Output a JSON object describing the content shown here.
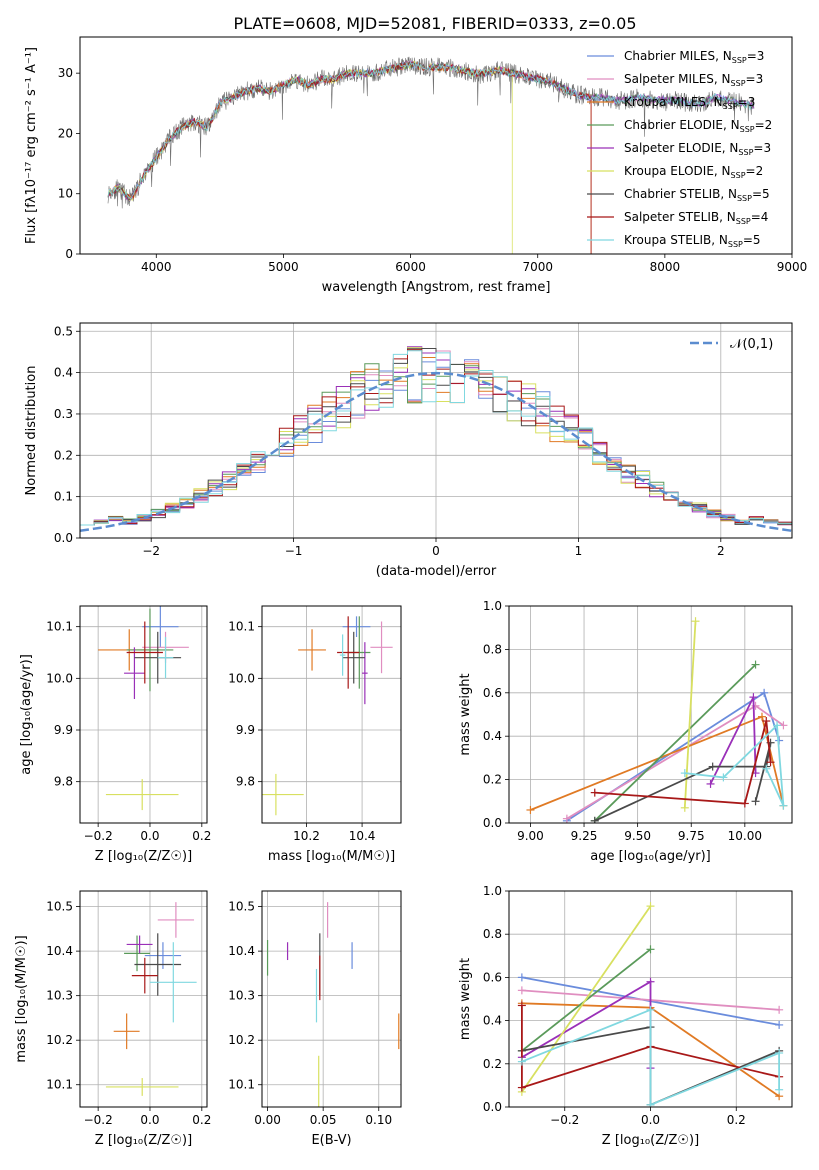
{
  "title": "PLATE=0608, MJD=52081, FIBERID=0333, z=0.05",
  "series_colors": [
    "#6a8cdc",
    "#e08ec0",
    "#e07a24",
    "#5a9a5a",
    "#9a30b8",
    "#d8e060",
    "#4a4a4a",
    "#a81818",
    "#80d8e0"
  ],
  "legend_labels": [
    [
      "Chabrier MILES, N",
      "SSP",
      "=3"
    ],
    [
      "Salpeter MILES, N",
      "SSP",
      "=3"
    ],
    [
      "Kroupa MILES, N",
      "SSP",
      "=3"
    ],
    [
      "Chabrier ELODIE, N",
      "SSP",
      "=2"
    ],
    [
      "Salpeter ELODIE, N",
      "SSP",
      "=3"
    ],
    [
      "Kroupa ELODIE, N",
      "SSP",
      "=2"
    ],
    [
      "Chabrier STELIB, N",
      "SSP",
      "=5"
    ],
    [
      "Salpeter STELIB, N",
      "SSP",
      "=4"
    ],
    [
      "Kroupa STELIB, N",
      "SSP",
      "=5"
    ]
  ],
  "chart_data": [
    {
      "id": "spectrum",
      "type": "line",
      "xlabel": "wavelength [Angstrom, rest frame]",
      "ylabel": "Flux [fλ10⁻¹⁷ erg cm⁻² s⁻¹ A⁻¹]",
      "xlim": [
        3400,
        9000
      ],
      "ylim": [
        0,
        36
      ],
      "xticks": [
        4000,
        5000,
        6000,
        7000,
        8000,
        9000
      ],
      "yticks": [
        0,
        10,
        20,
        30
      ],
      "grid": false,
      "legend": "top-right",
      "observed": {
        "name": "data",
        "x": [
          3620,
          3700,
          3800,
          3900,
          4000,
          4100,
          4200,
          4300,
          4400,
          4500,
          4600,
          4700,
          4800,
          4900,
          5000,
          5100,
          5200,
          5300,
          5400,
          5500,
          5600,
          5700,
          5800,
          5900,
          6000,
          6100,
          6200,
          6300,
          6400,
          6500,
          6600,
          6700,
          6800,
          6900,
          7000,
          7100,
          7200,
          7300,
          7400,
          7500,
          7600,
          7700,
          7800,
          7900,
          8000,
          8100,
          8200,
          8300,
          8400,
          8500,
          8600,
          8700
        ],
        "y": [
          10,
          11,
          9,
          13,
          16,
          19,
          21,
          22,
          21,
          25,
          26,
          27,
          27.5,
          27,
          28,
          29,
          28,
          29,
          29,
          30,
          30,
          30,
          30.5,
          31,
          31.5,
          31,
          31,
          31,
          30.5,
          30,
          30,
          30.5,
          30,
          29.5,
          29,
          28.5,
          27.5,
          26.5,
          26,
          26,
          25.5,
          25.5,
          26,
          25.5,
          25.5,
          25.5,
          25,
          25,
          26,
          25.5,
          25,
          24.5
        ]
      },
      "models": [
        {
          "name": "Chabrier MILES",
          "cut_from": null
        },
        {
          "name": "Salpeter MILES",
          "cut_from": null
        },
        {
          "name": "Kroupa MILES",
          "cut_from": 7420
        },
        {
          "name": "Chabrier ELODIE",
          "cut_from": null
        },
        {
          "name": "Salpeter ELODIE",
          "cut_from": null
        },
        {
          "name": "Kroupa ELODIE",
          "cut_from": 6800
        },
        {
          "name": "Chabrier STELIB",
          "cut_from": null
        },
        {
          "name": "Salpeter STELIB",
          "cut_from": 7420
        },
        {
          "name": "Kroupa STELIB",
          "cut_from": null
        }
      ]
    },
    {
      "id": "residuals",
      "type": "histogram",
      "xlabel": "(data-model)/error",
      "ylabel": "Normed distribution",
      "xlim": [
        -2.5,
        2.5
      ],
      "ylim": [
        0,
        0.52
      ],
      "xticks": [
        -2,
        -1,
        0,
        1,
        2
      ],
      "yticks": [
        0,
        0.1,
        0.2,
        0.3,
        0.4,
        0.5
      ],
      "grid": true,
      "reference_label": "𝒩(0,1)",
      "bin_width": 0.1,
      "peak_values": [
        0.46,
        0.44,
        0.47,
        0.45,
        0.5,
        0.46,
        0.44,
        0.45,
        0.46
      ]
    },
    {
      "id": "age_vs_Z",
      "type": "errorbar",
      "xlabel": "Z [log₁₀(Z/Z☉)]",
      "ylabel": "age  [log₁₀(age/yr)]",
      "xlim": [
        -0.27,
        0.22
      ],
      "ylim": [
        9.72,
        10.14
      ],
      "xticks": [
        -0.2,
        0.0,
        0.2
      ],
      "yticks": [
        9.8,
        9.9,
        10.0,
        10.1
      ],
      "grid": true,
      "points": [
        {
          "x": 0.04,
          "xerr": 0.07,
          "y": 10.1,
          "yerr": 0.04
        },
        {
          "x": 0.06,
          "xerr": 0.09,
          "y": 10.06,
          "yerr": 0.03
        },
        {
          "x": -0.08,
          "xerr": 0.12,
          "y": 10.055,
          "yerr": 0.04
        },
        {
          "x": 0.0,
          "xerr": 0.09,
          "y": 10.055,
          "yerr": 0.08
        },
        {
          "x": -0.06,
          "xerr": 0.04,
          "y": 10.01,
          "yerr": 0.05
        },
        {
          "x": -0.03,
          "xerr": 0.14,
          "y": 9.775,
          "yerr": 0.03
        },
        {
          "x": 0.03,
          "xerr": 0.09,
          "y": 10.04,
          "yerr": 0.05
        },
        {
          "x": -0.02,
          "xerr": 0.07,
          "y": 10.05,
          "yerr": 0.06
        },
        {
          "x": 0.06,
          "xerr": 0.03,
          "y": 10.04,
          "yerr": 0.04
        }
      ]
    },
    {
      "id": "age_vs_mass",
      "type": "errorbar",
      "xlabel": "mass [log₁₀(M/M☉)]",
      "ylabel": "",
      "xlim": [
        10.04,
        10.54
      ],
      "ylim": [
        9.72,
        10.14
      ],
      "xticks": [
        10.2,
        10.4
      ],
      "yticks": [
        9.8,
        9.9,
        10.0,
        10.1
      ],
      "grid": true,
      "points": [
        {
          "x": 10.38,
          "xerr": 0.05,
          "y": 10.1,
          "yerr": 0.02
        },
        {
          "x": 10.47,
          "xerr": 0.04,
          "y": 10.06,
          "yerr": 0.05
        },
        {
          "x": 10.22,
          "xerr": 0.05,
          "y": 10.055,
          "yerr": 0.04
        },
        {
          "x": 10.39,
          "xerr": 0.04,
          "y": 10.05,
          "yerr": 0.07
        },
        {
          "x": 10.41,
          "xerr": 0.01,
          "y": 10.01,
          "yerr": 0.06
        },
        {
          "x": 10.09,
          "xerr": 0.1,
          "y": 9.775,
          "yerr": 0.04
        },
        {
          "x": 10.37,
          "xerr": 0.04,
          "y": 10.04,
          "yerr": 0.05
        },
        {
          "x": 10.35,
          "xerr": 0.04,
          "y": 10.05,
          "yerr": 0.07
        },
        {
          "x": 10.33,
          "xerr": 0.01,
          "y": 10.045,
          "yerr": 0.04
        }
      ]
    },
    {
      "id": "mw_vs_age",
      "type": "line",
      "xlabel": "age  [log₁₀(age/yr)]",
      "ylabel": "mass weight",
      "xlim": [
        8.9,
        10.22
      ],
      "ylim": [
        0,
        1
      ],
      "xticks": [
        9.0,
        9.25,
        9.5,
        9.75,
        10.0
      ],
      "xticklabels": [
        "9.00",
        "9.25",
        "9.50",
        "9.75",
        "10.00"
      ],
      "yticks": [
        0,
        0.2,
        0.4,
        0.6,
        0.8,
        1.0
      ],
      "grid": true,
      "series": [
        {
          "x": [
            9.17,
            10.09,
            10.16
          ],
          "y": [
            0.01,
            0.6,
            0.38
          ]
        },
        {
          "x": [
            9.17,
            10.05,
            10.18
          ],
          "y": [
            0.02,
            0.54,
            0.45
          ]
        },
        {
          "x": [
            9.0,
            10.08,
            10.18
          ],
          "y": [
            0.06,
            0.49,
            0.08
          ]
        },
        {
          "x": [
            9.3,
            10.05
          ],
          "y": [
            0.01,
            0.73
          ]
        },
        {
          "x": [
            9.84,
            10.04,
            10.05
          ],
          "y": [
            0.18,
            0.58,
            0.23
          ]
        },
        {
          "x": [
            9.72,
            9.77
          ],
          "y": [
            0.07,
            0.93
          ]
        },
        {
          "x": [
            9.3,
            9.85,
            10.1,
            10.12,
            10.05
          ],
          "y": [
            0.01,
            0.26,
            0.26,
            0.37,
            0.1
          ]
        },
        {
          "x": [
            9.3,
            10.0,
            10.1,
            10.12
          ],
          "y": [
            0.14,
            0.09,
            0.47,
            0.28
          ]
        },
        {
          "x": [
            9.72,
            9.9,
            10.15,
            10.18,
            10.1
          ],
          "y": [
            0.23,
            0.21,
            0.45,
            0.08,
            0.25
          ]
        }
      ]
    },
    {
      "id": "mass_vs_Z",
      "type": "errorbar",
      "xlabel": "Z [log₁₀(Z/Z☉)]",
      "ylabel": "mass [log₁₀(M/M☉)]",
      "xlim": [
        -0.27,
        0.22
      ],
      "ylim": [
        10.05,
        10.535
      ],
      "xticks": [
        -0.2,
        0.0,
        0.2
      ],
      "yticks": [
        10.1,
        10.2,
        10.3,
        10.4,
        10.5
      ],
      "grid": true,
      "points": [
        {
          "x": 0.05,
          "xerr": 0.07,
          "y": 10.39,
          "yerr": 0.03
        },
        {
          "x": 0.1,
          "xerr": 0.07,
          "y": 10.47,
          "yerr": 0.04
        },
        {
          "x": -0.09,
          "xerr": 0.05,
          "y": 10.22,
          "yerr": 0.04
        },
        {
          "x": -0.05,
          "xerr": 0.05,
          "y": 10.395,
          "yerr": 0.04
        },
        {
          "x": -0.04,
          "xerr": 0.05,
          "y": 10.415,
          "yerr": 0.02
        },
        {
          "x": -0.03,
          "xerr": 0.14,
          "y": 10.095,
          "yerr": 0.02
        },
        {
          "x": 0.03,
          "xerr": 0.09,
          "y": 10.37,
          "yerr": 0.07
        },
        {
          "x": -0.02,
          "xerr": 0.05,
          "y": 10.345,
          "yerr": 0.04
        },
        {
          "x": 0.09,
          "xerr": 0.09,
          "y": 10.33,
          "yerr": 0.09
        }
      ]
    },
    {
      "id": "mass_vs_EBV",
      "type": "errorbar",
      "xlabel": "E(B-V)",
      "ylabel": "",
      "xlim": [
        -0.005,
        0.12
      ],
      "ylim": [
        10.05,
        10.535
      ],
      "xticks": [
        0.0,
        0.05,
        0.1
      ],
      "xticklabels": [
        "0.00",
        "0.05",
        "0.10"
      ],
      "yticks": [
        10.1,
        10.2,
        10.3,
        10.4,
        10.5
      ],
      "grid": true,
      "points": [
        {
          "x": 0.076,
          "xerr": 0,
          "y": 10.39,
          "yerr": 0.03
        },
        {
          "x": 0.054,
          "xerr": 0,
          "y": 10.47,
          "yerr": 0.04
        },
        {
          "x": 0.118,
          "xerr": 0,
          "y": 10.22,
          "yerr": 0.04
        },
        {
          "x": 0.0,
          "xerr": 0,
          "y": 10.385,
          "yerr": 0.04
        },
        {
          "x": 0.018,
          "xerr": 0,
          "y": 10.4,
          "yerr": 0.02
        },
        {
          "x": 0.046,
          "xerr": 0,
          "y": 10.095,
          "yerr": 0.07
        },
        {
          "x": 0.047,
          "xerr": 0,
          "y": 10.37,
          "yerr": 0.07
        },
        {
          "x": 0.047,
          "xerr": 0,
          "y": 10.34,
          "yerr": 0.05
        },
        {
          "x": 0.044,
          "xerr": 0,
          "y": 10.3,
          "yerr": 0.06
        }
      ]
    },
    {
      "id": "mw_vs_Z",
      "type": "line",
      "xlabel": "Z [log₁₀(Z/Z☉)]",
      "ylabel": "mass weight",
      "xlim": [
        -0.33,
        0.33
      ],
      "ylim": [
        0,
        1
      ],
      "xticks": [
        -0.2,
        0.0,
        0.2
      ],
      "yticks": [
        0,
        0.2,
        0.4,
        0.6,
        0.8,
        1.0
      ],
      "grid": true,
      "series": [
        {
          "x": [
            -0.3,
            0.3
          ],
          "y": [
            0.6,
            0.38
          ]
        },
        {
          "x": [
            -0.3,
            0.3
          ],
          "y": [
            0.54,
            0.45
          ]
        },
        {
          "x": [
            -0.3,
            0.0,
            0.3
          ],
          "y": [
            0.48,
            0.46,
            0.05
          ]
        },
        {
          "x": [
            -0.3,
            0.0
          ],
          "y": [
            0.26,
            0.73
          ]
        },
        {
          "x": [
            -0.3,
            0.0,
            0.0
          ],
          "y": [
            0.23,
            0.58,
            0.18
          ]
        },
        {
          "x": [
            -0.3,
            0.0
          ],
          "y": [
            0.07,
            0.93
          ]
        },
        {
          "x": [
            -0.3,
            0.0,
            0.0,
            0.3
          ],
          "y": [
            0.26,
            0.37,
            0.01,
            0.26
          ]
        },
        {
          "x": [
            -0.3,
            -0.3,
            0.0,
            0.3
          ],
          "y": [
            0.47,
            0.09,
            0.28,
            0.14
          ]
        },
        {
          "x": [
            -0.3,
            0.0,
            0.0,
            0.3,
            0.3
          ],
          "y": [
            0.21,
            0.45,
            0.01,
            0.25,
            0.08
          ]
        }
      ]
    }
  ]
}
